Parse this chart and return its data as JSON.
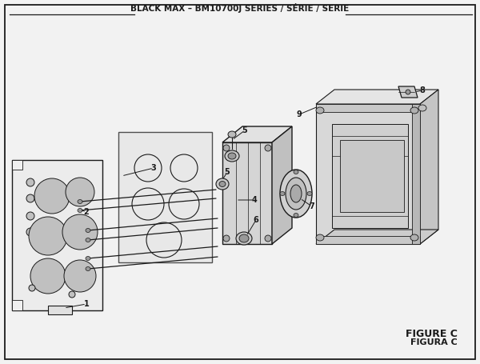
{
  "title": "BLACK MAX – BM10700J SERIES / SÉRIE / SERIE",
  "title_fontsize": 7.5,
  "figure_c_text": "FIGURE C",
  "figura_c_text": "FIGURA C",
  "bg_color": "#f2f2f2",
  "border_color": "#000000",
  "line_color": "#1a1a1a",
  "label_fontsize": 7,
  "panel_fill": "#e8e8e8",
  "panel_fill2": "#ebebeb",
  "box_fill": "#e0e0e0",
  "box_fill_dark": "#c8c8c8",
  "box_fill_light": "#f0f0f0",
  "assembly_fill": "#d0d0d0",
  "hole_fill": "#c0c0c0"
}
